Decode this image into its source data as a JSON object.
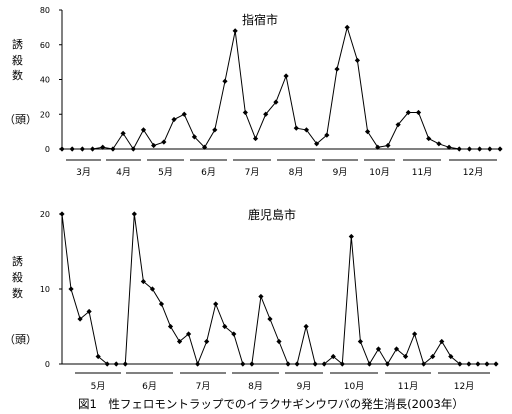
{
  "caption": "図1　性フェロモントラップでのイラクサギンウワバの発生消長(2003年）",
  "ylabel_top": [
    "誘",
    "殺",
    "数"
  ],
  "ylabel_unit": "（頭）",
  "chart_data": [
    {
      "type": "line",
      "title": "指宿市",
      "ylabel": "誘殺数（頭）",
      "ylim": [
        0,
        80
      ],
      "yticks": [
        0,
        20,
        40,
        60,
        80
      ],
      "months": [
        "3月",
        "4月",
        "5月",
        "6月",
        "7月",
        "8月",
        "9月",
        "10月",
        "11月",
        "12月"
      ],
      "series": [
        {
          "values": [
            0,
            0,
            0,
            0,
            1,
            0,
            9,
            0,
            11,
            2,
            4,
            17,
            20,
            7,
            1,
            11,
            39,
            68,
            21,
            6,
            20,
            27,
            42,
            12,
            11,
            3,
            8,
            46,
            70,
            51,
            10,
            1,
            2,
            14,
            21,
            21,
            6,
            3,
            1,
            0,
            0,
            0,
            0,
            0
          ]
        }
      ]
    },
    {
      "type": "line",
      "title": "鹿児島市",
      "ylabel": "誘殺数（頭）",
      "ylim": [
        0,
        20
      ],
      "yticks": [
        0,
        10,
        20
      ],
      "months": [
        "5月",
        "6月",
        "7月",
        "8月",
        "9月",
        "10月",
        "11月",
        "12月"
      ],
      "series": [
        {
          "values": [
            20,
            10,
            6,
            7,
            1,
            0,
            0,
            0,
            20,
            11,
            10,
            8,
            5,
            3,
            4,
            0,
            3,
            8,
            5,
            4,
            0,
            0,
            9,
            6,
            3,
            0,
            0,
            5,
            0,
            0,
            1,
            0,
            17,
            3,
            0,
            2,
            0,
            2,
            1,
            4,
            0,
            1,
            3,
            1,
            0,
            0,
            0,
            0,
            0
          ]
        }
      ]
    }
  ]
}
